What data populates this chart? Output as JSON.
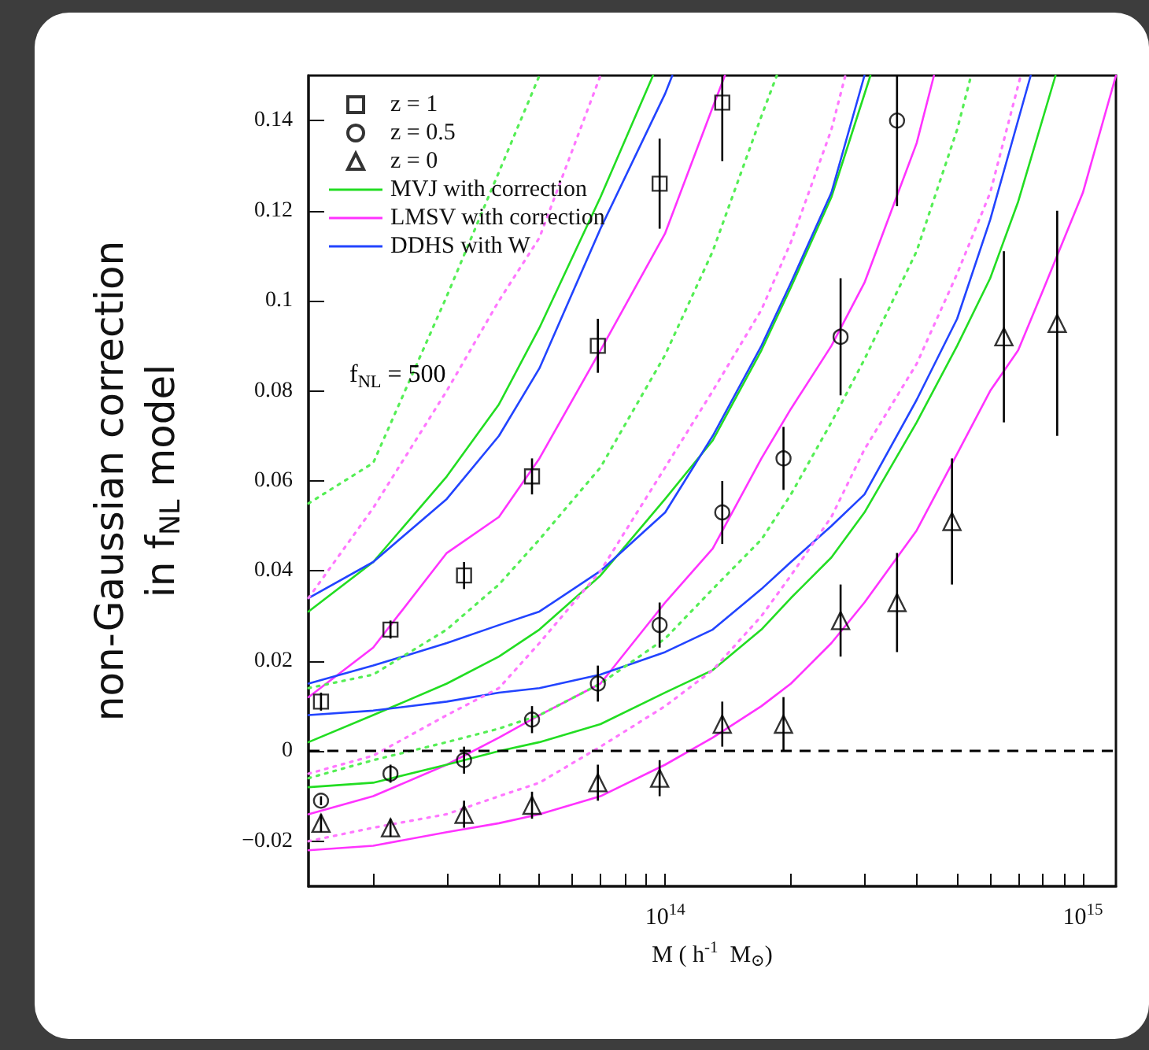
{
  "chart_data": {
    "type": "line",
    "xlabel": "M ( h$^{-1}$  M$_{⊙}$)",
    "ylabel": "non-Gaussian correction\nin f$_{NL}$ model",
    "annotations": [
      "f$_{NL}$ = 500"
    ],
    "log": "x",
    "xlim": [
      14000000000000.0,
      1200000000000000.0
    ],
    "xticks": [
      {
        "value": 20000000000000.0,
        "label": null
      },
      {
        "value": 30000000000000.0,
        "label": null
      },
      {
        "value": 40000000000000.0,
        "label": null
      },
      {
        "value": 50000000000000.0,
        "label": null
      },
      {
        "value": 60000000000000.0,
        "label": null
      },
      {
        "value": 70000000000000.0,
        "label": null
      },
      {
        "value": 80000000000000.0,
        "label": null
      },
      {
        "value": 90000000000000.0,
        "label": null
      },
      {
        "value": 100000000000000.0,
        "label": "10$^{14}$"
      },
      {
        "value": 200000000000000.0,
        "label": null
      },
      {
        "value": 300000000000000.0,
        "label": null
      },
      {
        "value": 400000000000000.0,
        "label": null
      },
      {
        "value": 500000000000000.0,
        "label": null
      },
      {
        "value": 600000000000000.0,
        "label": null
      },
      {
        "value": 700000000000000.0,
        "label": null
      },
      {
        "value": 800000000000000.0,
        "label": null
      },
      {
        "value": 900000000000000.0,
        "label": null
      },
      {
        "value": 1000000000000000.0,
        "label": "10$^{15}$"
      }
    ],
    "ylim": [
      -0.03,
      0.15
    ],
    "yticks": [
      {
        "value": -0.02,
        "label": "−0.02"
      },
      0,
      0.02,
      0.04,
      0.06,
      0.08,
      0.1,
      0.12,
      0.14
    ],
    "grid": false,
    "legend": "top left",
    "ref_lines": [
      {
        "axis": "y",
        "value": 0,
        "color": "#000000",
        "line_style": "dashed"
      }
    ],
    "series": [
      {
        "type": "scatter",
        "name": "z = 1",
        "marker": "square",
        "color": "#000000",
        "x": [
          15000000000000.0,
          22000000000000.0,
          33000000000000.0,
          48000000000000.0,
          69000000000000.0,
          97000000000000.0,
          137000000000000.0
        ],
        "values": [
          0.011,
          0.027,
          0.039,
          0.061,
          0.09,
          0.126,
          0.144
        ],
        "errors": [
          0.002,
          0.002,
          0.003,
          0.004,
          0.006,
          0.01,
          [
            0.131,
            0.15
          ]
        ]
      },
      {
        "type": "scatter",
        "name": "z = 0.5",
        "marker": "circle",
        "color": "#000000",
        "x": [
          15000000000000.0,
          22000000000000.0,
          33000000000000.0,
          48000000000000.0,
          69000000000000.0,
          97000000000000.0,
          137000000000000.0,
          192000000000000.0,
          263000000000000.0,
          359000000000000.0
        ],
        "values": [
          -0.011,
          -0.005,
          -0.002,
          0.007,
          0.015,
          0.028,
          0.053,
          0.065,
          0.092,
          0.14
        ],
        "errors": [
          0.001,
          0.002,
          0.003,
          0.003,
          0.004,
          0.005,
          0.007,
          0.007,
          0.013,
          [
            0.121,
            0.15
          ]
        ]
      },
      {
        "type": "scatter",
        "name": "z = 0",
        "marker": "triangle",
        "color": "#000000",
        "x": [
          15000000000000.0,
          22000000000000.0,
          33000000000000.0,
          48000000000000.0,
          69000000000000.0,
          97000000000000.0,
          137000000000000.0,
          192000000000000.0,
          263000000000000.0,
          359000000000000.0,
          486000000000000.0,
          647000000000000.0,
          868000000000000.0
        ],
        "values": [
          -0.016,
          -0.017,
          -0.014,
          -0.012,
          -0.007,
          -0.006,
          0.006,
          0.006,
          0.029,
          0.033,
          0.051,
          0.092,
          0.095
        ],
        "errors": [
          0.002,
          0.002,
          0.003,
          0.003,
          0.004,
          0.004,
          0.005,
          0.006,
          0.008,
          0.011,
          0.014,
          0.019,
          0.025
        ]
      },
      {
        "name": "MVJ with correction",
        "color": "#22dd22",
        "line_style": "solid",
        "x": [
          14000000000000.0,
          20000000000000.0,
          30000000000000.0,
          40000000000000.0,
          50000000000000.0,
          70000000000000.0,
          93500000000000.0
        ],
        "values": [
          0.031,
          0.042,
          0.061,
          0.077,
          0.094,
          0.123,
          0.15
        ]
      },
      {
        "name": "LMSV with correction",
        "color": "#ff33ff",
        "line_style": "solid",
        "x": [
          14000000000000.0,
          20000000000000.0,
          30000000000000.0,
          40000000000000.0,
          50000000000000.0,
          70000000000000.0,
          100000000000000.0,
          130000000000000.0,
          139000000000000.0
        ],
        "values": [
          0.012,
          0.023,
          0.044,
          0.052,
          0.065,
          0.089,
          0.115,
          0.143,
          0.15
        ]
      },
      {
        "name": "DDHS with W",
        "color": "#2244ff",
        "line_style": "solid",
        "x": [
          14000000000000.0,
          20000000000000.0,
          30000000000000.0,
          40000000000000.0,
          50000000000000.0,
          70000000000000.0,
          100000000000000.0,
          104000000000000.0
        ],
        "values": [
          0.034,
          0.042,
          0.056,
          0.07,
          0.085,
          0.116,
          0.146,
          0.15
        ]
      },
      {
        "color": "#22dd22",
        "line_style": "solid",
        "x": [
          14000000000000.0,
          20000000000000.0,
          30000000000000.0,
          40000000000000.0,
          50000000000000.0,
          70000000000000.0,
          100000000000000.0,
          130000000000000.0,
          170000000000000.0,
          200000000000000.0,
          250000000000000.0,
          310000000000000.0
        ],
        "values": [
          0.002,
          0.008,
          0.015,
          0.021,
          0.027,
          0.039,
          0.056,
          0.069,
          0.089,
          0.103,
          0.123,
          0.15
        ]
      },
      {
        "color": "#ff33ff",
        "line_style": "solid",
        "x": [
          14000000000000.0,
          20000000000000.0,
          30000000000000.0,
          40000000000000.0,
          50000000000000.0,
          70000000000000.0,
          100000000000000.0,
          130000000000000.0,
          170000000000000.0,
          200000000000000.0,
          250000000000000.0,
          300000000000000.0,
          400000000000000.0,
          440000000000000.0
        ],
        "values": [
          -0.014,
          -0.01,
          -0.003,
          0.003,
          0.008,
          0.015,
          0.033,
          0.045,
          0.065,
          0.076,
          0.09,
          0.104,
          0.135,
          0.15
        ]
      },
      {
        "color": "#2244ff",
        "line_style": "solid",
        "x": [
          14000000000000.0,
          20000000000000.0,
          30000000000000.0,
          40000000000000.0,
          50000000000000.0,
          70000000000000.0,
          100000000000000.0,
          130000000000000.0,
          170000000000000.0,
          200000000000000.0,
          250000000000000.0,
          300000000000000.0
        ],
        "values": [
          0.015,
          0.019,
          0.024,
          0.028,
          0.031,
          0.04,
          0.053,
          0.07,
          0.09,
          0.104,
          0.124,
          0.15
        ]
      },
      {
        "color": "#22dd22",
        "line_style": "solid",
        "x": [
          14000000000000.0,
          20000000000000.0,
          30000000000000.0,
          40000000000000.0,
          50000000000000.0,
          70000000000000.0,
          100000000000000.0,
          130000000000000.0,
          170000000000000.0,
          200000000000000.0,
          250000000000000.0,
          300000000000000.0,
          400000000000000.0,
          500000000000000.0,
          600000000000000.0,
          700000000000000.0,
          860000000000000.0
        ],
        "values": [
          -0.008,
          -0.007,
          -0.003,
          0.0,
          0.002,
          0.006,
          0.013,
          0.018,
          0.027,
          0.034,
          0.043,
          0.053,
          0.073,
          0.09,
          0.105,
          0.122,
          0.15
        ]
      },
      {
        "color": "#ff33ff",
        "line_style": "solid",
        "x": [
          14000000000000.0,
          20000000000000.0,
          30000000000000.0,
          40000000000000.0,
          50000000000000.0,
          70000000000000.0,
          100000000000000.0,
          130000000000000.0,
          170000000000000.0,
          200000000000000.0,
          250000000000000.0,
          300000000000000.0,
          400000000000000.0,
          500000000000000.0,
          600000000000000.0,
          700000000000000.0,
          800000000000000.0,
          1000000000000000.0,
          1200000000000000.0
        ],
        "values": [
          -0.022,
          -0.021,
          -0.018,
          -0.016,
          -0.014,
          -0.01,
          -0.003,
          0.003,
          0.01,
          0.015,
          0.024,
          0.033,
          0.049,
          0.066,
          0.08,
          0.089,
          0.102,
          0.124,
          0.15
        ]
      },
      {
        "color": "#2244ff",
        "line_style": "solid",
        "x": [
          14000000000000.0,
          20000000000000.0,
          30000000000000.0,
          40000000000000.0,
          50000000000000.0,
          70000000000000.0,
          100000000000000.0,
          130000000000000.0,
          170000000000000.0,
          200000000000000.0,
          250000000000000.0,
          300000000000000.0,
          400000000000000.0,
          500000000000000.0,
          600000000000000.0,
          750000000000000.0
        ],
        "values": [
          0.008,
          0.009,
          0.011,
          0.013,
          0.014,
          0.017,
          0.022,
          0.027,
          0.036,
          0.042,
          0.05,
          0.057,
          0.078,
          0.096,
          0.118,
          0.15
        ]
      },
      {
        "color": "#55ee55",
        "line_style": "dotted",
        "x": [
          14000000000000.0,
          20000000000000.0,
          30000000000000.0,
          50000000000000.0
        ],
        "values": [
          0.055,
          0.064,
          0.101,
          0.15
        ]
      },
      {
        "color": "#ff77ff",
        "line_style": "dotted",
        "x": [
          14000000000000.0,
          20000000000000.0,
          30000000000000.0,
          40000000000000.0,
          50000000000000.0,
          70000000000000.0
        ],
        "values": [
          0.034,
          0.054,
          0.08,
          0.1,
          0.114,
          0.15
        ]
      },
      {
        "color": "#55ee55",
        "line_style": "dotted",
        "x": [
          14000000000000.0,
          20000000000000.0,
          30000000000000.0,
          40000000000000.0,
          50000000000000.0,
          70000000000000.0,
          100000000000000.0,
          130000000000000.0,
          170000000000000.0,
          185000000000000.0
        ],
        "values": [
          0.014,
          0.017,
          0.027,
          0.037,
          0.047,
          0.063,
          0.088,
          0.111,
          0.141,
          0.15
        ]
      },
      {
        "color": "#ff77ff",
        "line_style": "dotted",
        "x": [
          14000000000000.0,
          20000000000000.0,
          30000000000000.0,
          40000000000000.0,
          50000000000000.0,
          70000000000000.0,
          100000000000000.0,
          130000000000000.0,
          170000000000000.0,
          200000000000000.0,
          250000000000000.0,
          270000000000000.0
        ],
        "values": [
          -0.005,
          -0.001,
          0.008,
          0.014,
          0.024,
          0.04,
          0.063,
          0.08,
          0.098,
          0.113,
          0.138,
          0.15
        ]
      },
      {
        "color": "#55ee55",
        "line_style": "dotted",
        "x": [
          14000000000000.0,
          20000000000000.0,
          30000000000000.0,
          40000000000000.0,
          50000000000000.0,
          70000000000000.0,
          100000000000000.0,
          130000000000000.0,
          170000000000000.0,
          200000000000000.0,
          250000000000000.0,
          300000000000000.0,
          400000000000000.0,
          500000000000000.0,
          540000000000000.0
        ],
        "values": [
          -0.006,
          -0.002,
          0.002,
          0.005,
          0.008,
          0.015,
          0.025,
          0.036,
          0.047,
          0.057,
          0.073,
          0.087,
          0.111,
          0.138,
          0.15
        ]
      },
      {
        "color": "#ff77ff",
        "line_style": "dotted",
        "x": [
          14000000000000.0,
          20000000000000.0,
          30000000000000.0,
          40000000000000.0,
          50000000000000.0,
          70000000000000.0,
          100000000000000.0,
          130000000000000.0,
          170000000000000.0,
          200000000000000.0,
          250000000000000.0,
          300000000000000.0,
          400000000000000.0,
          500000000000000.0,
          600000000000000.0,
          710000000000000.0
        ],
        "values": [
          -0.02,
          -0.017,
          -0.014,
          -0.01,
          -0.007,
          0.001,
          0.01,
          0.018,
          0.03,
          0.039,
          0.052,
          0.067,
          0.086,
          0.106,
          0.124,
          0.15
        ]
      }
    ]
  }
}
